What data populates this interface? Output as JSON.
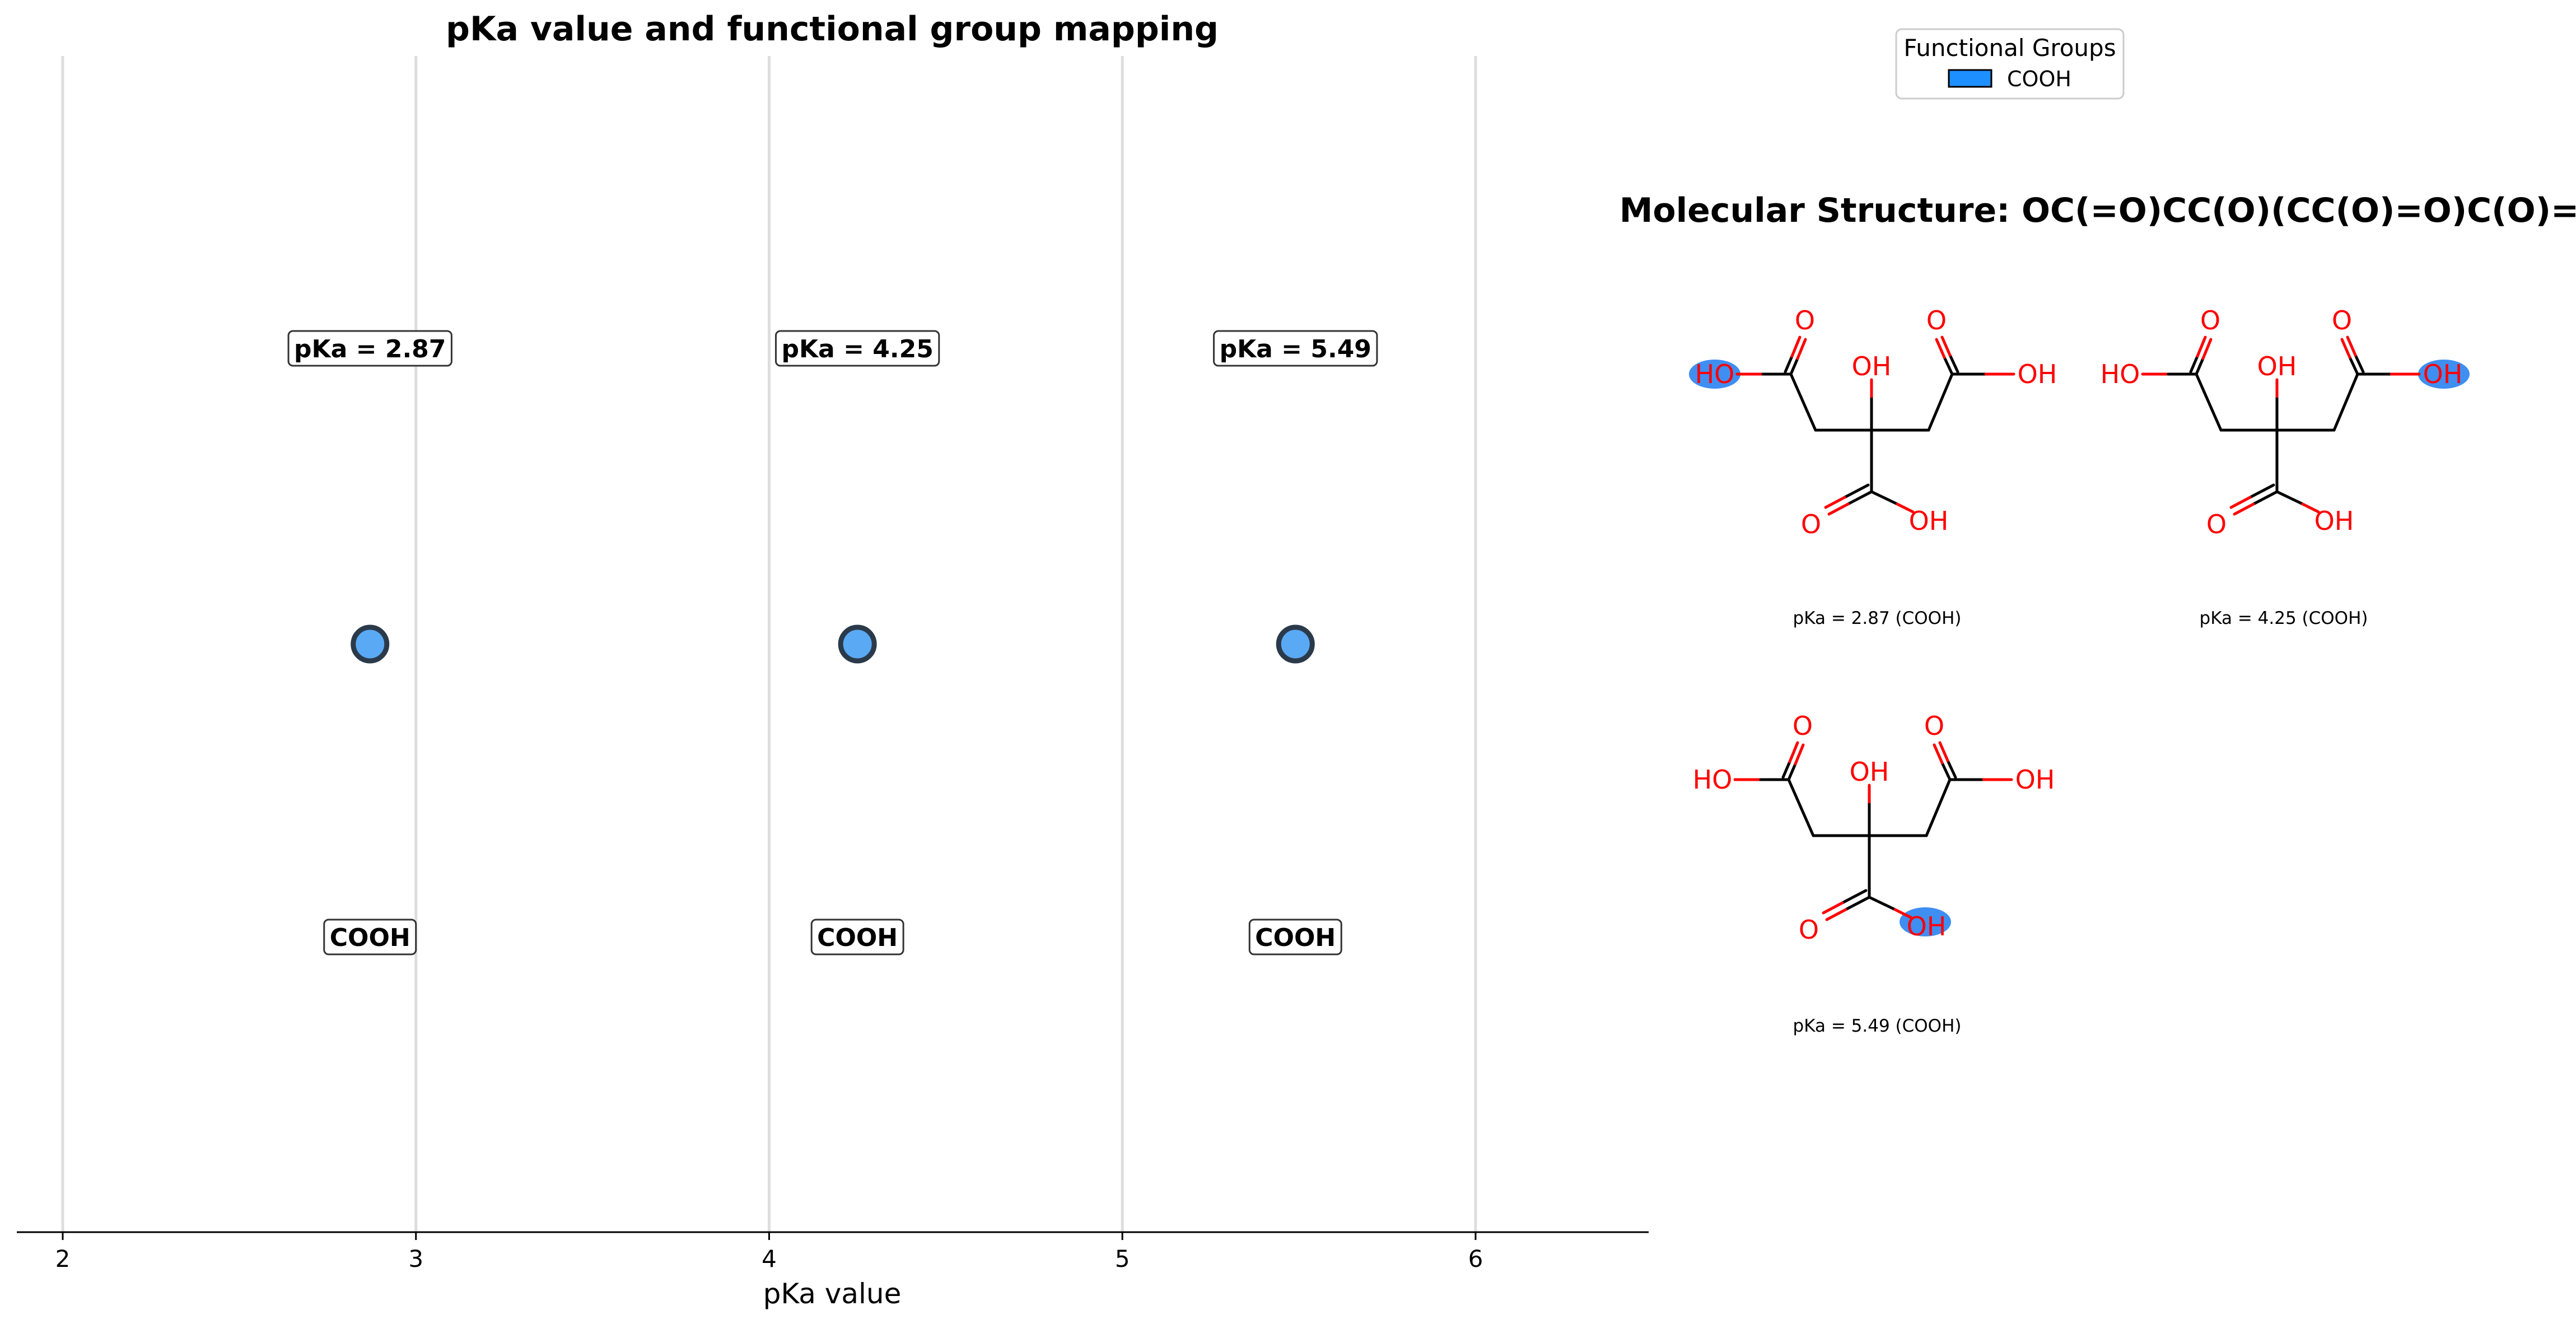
{
  "chart_data": {
    "type": "scatter",
    "title": "pKa value and functional group mapping",
    "xlabel": "pKa value",
    "xlim": [
      1.87,
      6.49
    ],
    "xticks": [
      2,
      3,
      4,
      5,
      6
    ],
    "grid": "vertical",
    "points": [
      {
        "x": 2.87,
        "value_label": "pKa = 2.87",
        "group_label": "COOH"
      },
      {
        "x": 4.25,
        "value_label": "pKa = 4.25",
        "group_label": "COOH"
      },
      {
        "x": 5.49,
        "value_label": "pKa = 5.49",
        "group_label": "COOH"
      }
    ],
    "marker_fill": "#5aa9f5",
    "marker_edge": "#2b3a4a"
  },
  "legend": {
    "title": "Functional Groups",
    "items": [
      {
        "label": "COOH",
        "color": "#1e8fff"
      }
    ],
    "placement": "top-right"
  },
  "molecule": {
    "title": "Molecular Structure: OC(=O)CC(O)(CC(O)=O)C(O)=O",
    "atom_color": "#ff0000",
    "highlight_color": "#3f8ef2",
    "panels": [
      {
        "caption": "pKa = 2.87 (COOH)",
        "highlight": "left_hydroxyl",
        "atoms": {
          "o_left": "O",
          "oh_left": "HO",
          "oh_mid": "OH",
          "o_right": "O",
          "oh_right": "OH",
          "o_bottom": "O",
          "oh_bottom": "OH"
        }
      },
      {
        "caption": "pKa = 4.25 (COOH)",
        "highlight": "right_hydroxyl",
        "atoms": {
          "o_left": "O",
          "oh_left": "HO",
          "oh_mid": "OH",
          "o_right": "O",
          "oh_right": "OH",
          "o_bottom": "O",
          "oh_bottom": "OH"
        }
      },
      {
        "caption": "pKa = 5.49 (COOH)",
        "highlight": "bottom_hydroxyl",
        "atoms": {
          "o_left": "O",
          "oh_left": "HO",
          "oh_mid": "OH",
          "o_right": "O",
          "oh_right": "OH",
          "o_bottom": "O",
          "oh_bottom": "OH"
        }
      }
    ]
  }
}
